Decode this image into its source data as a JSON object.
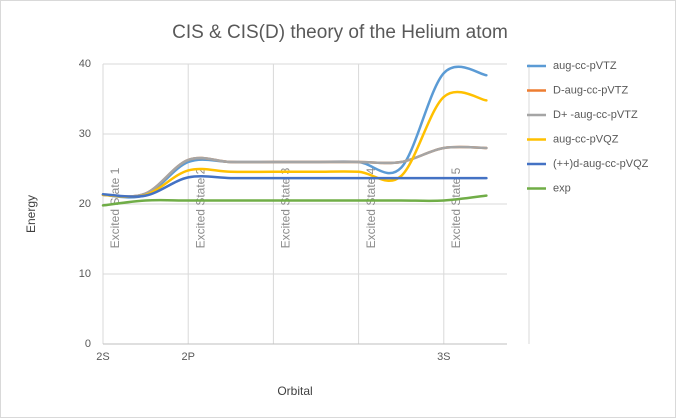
{
  "chart_data": {
    "type": "line",
    "title": "CIS  & CIS(D) theory of the Helium atom",
    "x_label": "Orbital",
    "y_label": "Energy",
    "categories": [
      "2S",
      null,
      "2P",
      null,
      null,
      null,
      null,
      null,
      "3S",
      null
    ],
    "ylim": [
      0,
      40
    ],
    "yticks": [
      0,
      10,
      20,
      30,
      40
    ],
    "grid": true,
    "smooth": true,
    "legend": "right",
    "annotations": [
      "Excited State 1",
      "Excited State 2",
      "Excited State 3",
      "Excited State 4",
      "Excited State 5"
    ],
    "series": [
      {
        "name": "aug-cc-pVTZ",
        "color": "#5b9bd5",
        "values": [
          21.3,
          21.3,
          26.0,
          26.0,
          26.0,
          26.0,
          26.0,
          25.2,
          38.7,
          38.4
        ]
      },
      {
        "name": "D-aug-cc-pVTZ",
        "color": "#ed7d31",
        "values": [
          21.3,
          21.5,
          26.3,
          26.0,
          26.0,
          26.0,
          26.0,
          26.0,
          28.0,
          28.0
        ]
      },
      {
        "name": "D+ -aug-cc-pVTZ",
        "color": "#a5a5a5",
        "values": [
          21.3,
          21.5,
          26.3,
          26.0,
          26.0,
          26.0,
          26.0,
          26.0,
          28.0,
          28.0
        ]
      },
      {
        "name": "aug-cc-pVQZ",
        "color": "#ffc000",
        "values": [
          21.3,
          21.3,
          24.8,
          24.6,
          24.6,
          24.6,
          24.6,
          24.0,
          35.3,
          34.8
        ]
      },
      {
        "name": "(++)d-aug-cc-pVQZ",
        "color": "#4472c4",
        "values": [
          21.4,
          21.2,
          23.8,
          23.7,
          23.7,
          23.7,
          23.7,
          23.7,
          23.7,
          23.7
        ]
      },
      {
        "name": "exp",
        "color": "#70ad47",
        "values": [
          19.8,
          20.5,
          20.5,
          20.5,
          20.5,
          20.5,
          20.5,
          20.5,
          20.5,
          21.2
        ]
      }
    ]
  }
}
